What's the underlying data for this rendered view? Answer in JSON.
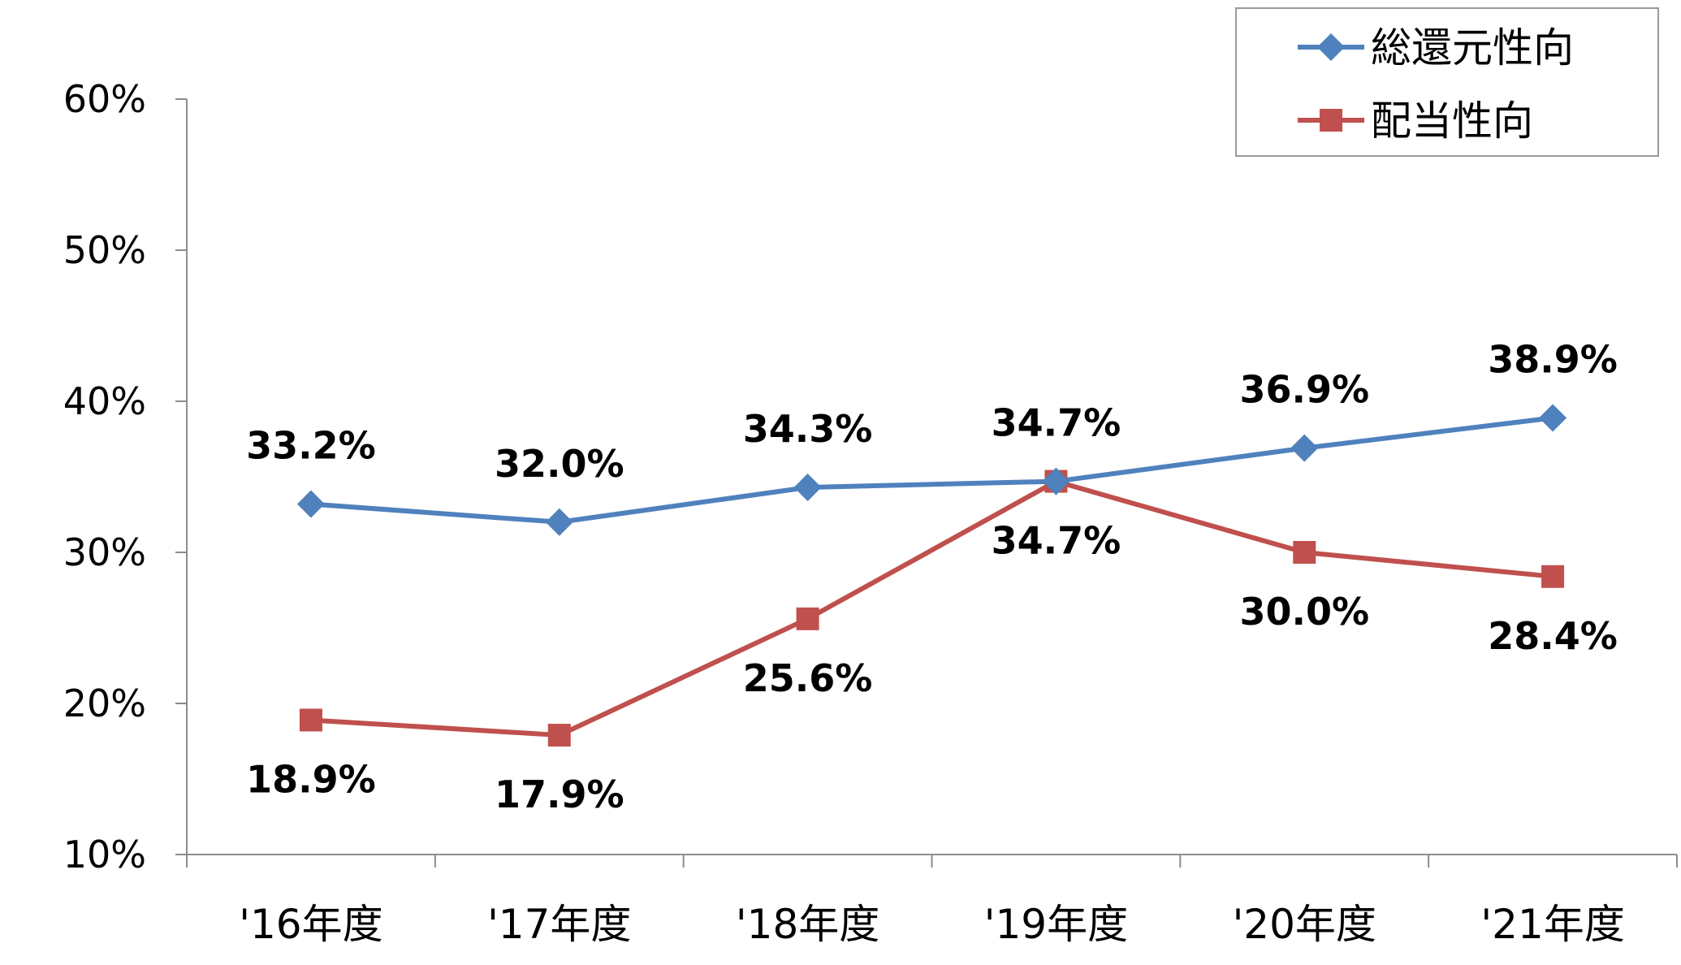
{
  "chart_data": {
    "type": "line",
    "categories": [
      "'16年度",
      "'17年度",
      "'18年度",
      "'19年度",
      "'20年度",
      "'21年度"
    ],
    "series": [
      {
        "name": "総還元性向",
        "color": "#4F81BD",
        "marker": "diamond",
        "values": [
          33.2,
          32.0,
          34.3,
          34.7,
          36.9,
          38.9
        ],
        "labels": [
          "33.2%",
          "32.0%",
          "34.3%",
          "34.7%",
          "36.9%",
          "38.9%"
        ],
        "label_position": "above"
      },
      {
        "name": "配当性向",
        "color": "#C0504D",
        "marker": "square",
        "values": [
          18.9,
          17.9,
          25.6,
          34.7,
          30.0,
          28.4
        ],
        "labels": [
          "18.9%",
          "17.9%",
          "25.6%",
          "34.7%",
          "30.0%",
          "28.4%"
        ],
        "label_position": "below"
      }
    ],
    "yticks": [
      "10%",
      "20%",
      "30%",
      "40%",
      "50%",
      "60%"
    ],
    "ytick_values": [
      10,
      20,
      30,
      40,
      50,
      60
    ],
    "ylim": [
      10,
      60
    ],
    "grid": false,
    "legend_position": "top-right"
  }
}
